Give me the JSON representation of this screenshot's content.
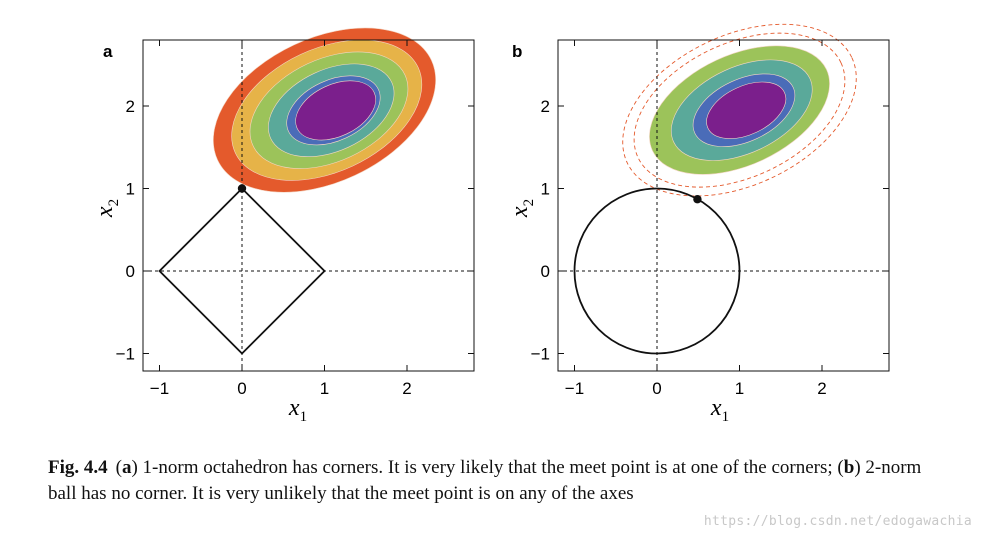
{
  "panels": [
    {
      "id": "a",
      "letter": "a",
      "xticks": [
        "−1",
        "0",
        "1",
        "2"
      ],
      "yticks": [
        "−1",
        "0",
        "1",
        "2"
      ],
      "xlabel": "x",
      "xlabel_sub": "1",
      "ylabel": "x",
      "ylabel_sub": "2",
      "constraint_shape": "diamond",
      "contact_point": [
        0,
        1
      ],
      "contour_colors": [
        "#e45a2c",
        "#e6b348",
        "#9cc35a",
        "#5aa99a",
        "#4a6cb8",
        "#7b1f8c"
      ]
    },
    {
      "id": "b",
      "letter": "b",
      "xticks": [
        "−1",
        "0",
        "1",
        "2"
      ],
      "yticks": [
        "−1",
        "0",
        "1",
        "2"
      ],
      "xlabel": "x",
      "xlabel_sub": "1",
      "ylabel": "x",
      "ylabel_sub": "2",
      "constraint_shape": "circle",
      "contact_point": [
        0.49,
        0.87
      ],
      "contour_colors": [
        "#9cc35a",
        "#5aa99a",
        "#4a6cb8",
        "#7b1f8c"
      ],
      "dashed_contour_color": "#e45a2c"
    }
  ],
  "caption": {
    "label": "Fig. 4.4",
    "a_marker": "a",
    "a_text": " 1-norm octahedron has corners. It is very likely that the meet point is at one of the corners; ",
    "b_marker": "b",
    "b_text": " 2-norm ball has no corner. It is very unlikely that the meet point is on any of the axes"
  },
  "watermark": "https://blog.csdn.net/edogawachia"
}
